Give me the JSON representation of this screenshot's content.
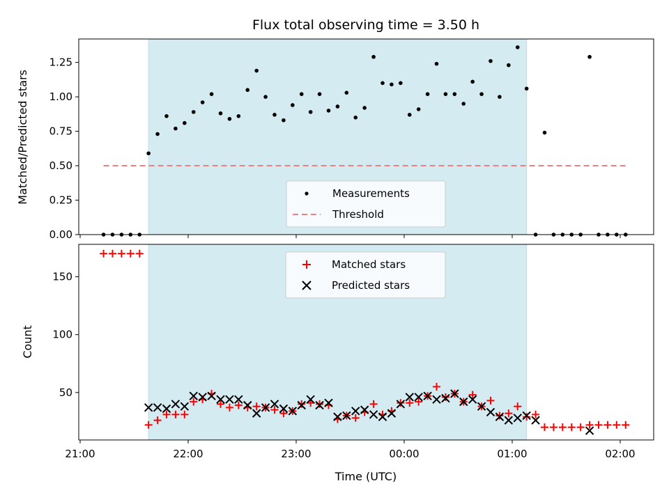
{
  "chart_data": [
    {
      "type": "scatter",
      "title": "Flux total observing time = 3.50 h",
      "xlabel": "",
      "ylabel": "Matched/Predicted stars",
      "ylim": [
        0,
        1.42
      ],
      "xlim": [
        "21:00",
        "02:00"
      ],
      "yticks": [
        "0.00",
        "0.25",
        "0.50",
        "0.75",
        "1.00",
        "1.25"
      ],
      "shaded_interval": {
        "from": "21:38",
        "to": "01:08",
        "color": "#d4ebf2"
      },
      "legend_position": "bottom-center",
      "series": [
        {
          "name": "Measurements",
          "color": "#000000",
          "marker": "dot",
          "x": [
            "21:13",
            "21:18",
            "21:23",
            "21:28",
            "21:33",
            "21:38",
            "21:43",
            "21:48",
            "21:53",
            "21:58",
            "22:03",
            "22:08",
            "22:13",
            "22:18",
            "22:23",
            "22:28",
            "22:33",
            "22:38",
            "22:43",
            "22:48",
            "22:53",
            "22:58",
            "23:03",
            "23:08",
            "23:13",
            "23:18",
            "23:23",
            "23:28",
            "23:33",
            "23:38",
            "23:43",
            "23:48",
            "23:53",
            "23:58",
            "00:03",
            "00:08",
            "00:13",
            "00:18",
            "00:23",
            "00:28",
            "00:33",
            "00:38",
            "00:43",
            "00:48",
            "00:53",
            "00:58",
            "01:03",
            "01:08",
            "01:13",
            "01:18",
            "01:23",
            "01:28",
            "01:33",
            "01:38",
            "01:43",
            "01:48",
            "01:53",
            "01:58",
            "02:03"
          ],
          "values": [
            0,
            0,
            0,
            0,
            0,
            0.59,
            0.73,
            0.86,
            0.77,
            0.81,
            0.89,
            0.96,
            1.02,
            0.88,
            0.84,
            0.86,
            1.05,
            1.19,
            1.0,
            0.87,
            0.83,
            0.94,
            1.02,
            0.89,
            1.02,
            0.9,
            0.93,
            1.03,
            0.85,
            0.92,
            1.29,
            1.1,
            1.09,
            1.1,
            0.87,
            0.91,
            1.02,
            1.24,
            1.02,
            1.02,
            0.95,
            1.11,
            1.02,
            1.26,
            1.0,
            1.23,
            1.36,
            1.06,
            0,
            0.74,
            0,
            0,
            0,
            0,
            1.29,
            0,
            0,
            0,
            0
          ]
        },
        {
          "name": "Threshold",
          "color": "#f08080",
          "style": "dashed",
          "x": [
            "21:13",
            "02:03"
          ],
          "values": [
            0.5,
            0.5
          ]
        }
      ]
    },
    {
      "type": "scatter",
      "title": "",
      "xlabel": "Time (UTC)",
      "ylabel": "Count",
      "ylim": [
        9,
        178
      ],
      "xlim": [
        "21:00",
        "02:00"
      ],
      "yticks": [
        "50",
        "100",
        "150"
      ],
      "xticks": [
        "21:00",
        "22:00",
        "23:00",
        "00:00",
        "01:00",
        "02:00"
      ],
      "shaded_interval": {
        "from": "21:38",
        "to": "01:08",
        "color": "#d4ebf2"
      },
      "legend_position": "top-center",
      "series": [
        {
          "name": "Matched stars",
          "color": "#ff0000",
          "marker": "plus",
          "x": [
            "21:13",
            "21:18",
            "21:23",
            "21:28",
            "21:33",
            "21:38",
            "21:43",
            "21:48",
            "21:53",
            "21:58",
            "22:03",
            "22:08",
            "22:13",
            "22:18",
            "22:23",
            "22:28",
            "22:33",
            "22:38",
            "22:43",
            "22:48",
            "22:53",
            "22:58",
            "23:03",
            "23:08",
            "23:13",
            "23:18",
            "23:23",
            "23:28",
            "23:33",
            "23:38",
            "23:43",
            "23:48",
            "23:53",
            "23:58",
            "00:03",
            "00:08",
            "00:13",
            "00:18",
            "00:23",
            "00:28",
            "00:33",
            "00:38",
            "00:43",
            "00:48",
            "00:53",
            "00:58",
            "01:03",
            "01:08",
            "01:13",
            "01:18",
            "01:23",
            "01:28",
            "01:33",
            "01:38",
            "01:43",
            "01:48",
            "01:53",
            "01:58",
            "02:03"
          ],
          "values": [
            170,
            170,
            170,
            170,
            170,
            22,
            26,
            31,
            31,
            31,
            42,
            44,
            49,
            40,
            37,
            39,
            37,
            38,
            37,
            35,
            32,
            34,
            40,
            41,
            40,
            39,
            27,
            30,
            28,
            33,
            40,
            31,
            34,
            41,
            41,
            42,
            47,
            55,
            46,
            49,
            42,
            48,
            38,
            43,
            30,
            32,
            38,
            29,
            31,
            20,
            20,
            20,
            20,
            20,
            22,
            22,
            22,
            22,
            22
          ]
        },
        {
          "name": "Predicted stars",
          "color": "#000000",
          "marker": "x",
          "x": [
            "21:38",
            "21:43",
            "21:48",
            "21:53",
            "21:58",
            "22:03",
            "22:08",
            "22:13",
            "22:18",
            "22:23",
            "22:28",
            "22:33",
            "22:38",
            "22:43",
            "22:48",
            "22:53",
            "22:58",
            "23:03",
            "23:08",
            "23:13",
            "23:18",
            "23:23",
            "23:28",
            "23:33",
            "23:38",
            "23:43",
            "23:48",
            "23:53",
            "23:58",
            "00:03",
            "00:08",
            "00:13",
            "00:18",
            "00:23",
            "00:28",
            "00:33",
            "00:38",
            "00:43",
            "00:48",
            "00:53",
            "00:58",
            "01:03",
            "01:08",
            "01:13",
            "01:43"
          ],
          "values": [
            37,
            37,
            36,
            40,
            38,
            47,
            46,
            47,
            44,
            44,
            44,
            39,
            32,
            37,
            40,
            36,
            34,
            39,
            44,
            39,
            41,
            29,
            30,
            34,
            35,
            31,
            29,
            32,
            40,
            46,
            46,
            47,
            44,
            45,
            49,
            42,
            44,
            38,
            33,
            29,
            26,
            28,
            30,
            26,
            17
          ]
        }
      ]
    }
  ]
}
